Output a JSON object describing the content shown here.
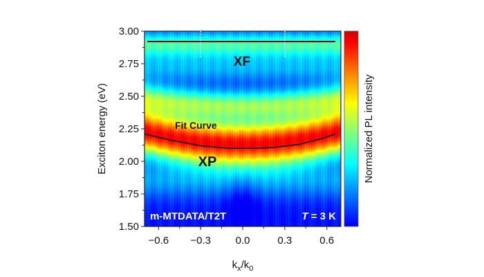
{
  "chart_data": {
    "type": "heatmap",
    "title": "",
    "xlabel": "k",
    "xlabel_sub1": "x",
    "xlabel_mid": "/k",
    "xlabel_sub2": "0",
    "ylabel": "Exciton energy (eV)",
    "xlim": [
      -0.7,
      0.7
    ],
    "ylim": [
      1.5,
      3.0
    ],
    "xticks": [
      -0.6,
      -0.3,
      0.0,
      0.3,
      0.6
    ],
    "xtick_labels": [
      "-0.6",
      "-0.3",
      "0.0",
      "0.3",
      "0.6"
    ],
    "yticks": [
      1.5,
      1.75,
      2.0,
      2.25,
      2.5,
      2.75,
      3.0
    ],
    "ytick_labels": [
      "1.50",
      "1.75",
      "2.00",
      "2.25",
      "2.50",
      "2.75",
      "3.00"
    ],
    "colorbar_label": "Normalized PL intensity",
    "colormap": "jet",
    "fit_curve": {
      "label": "Fit Curve",
      "x": [
        -0.7,
        -0.5,
        -0.3,
        -0.1,
        0.05,
        0.2,
        0.4,
        0.55,
        0.66
      ],
      "y": [
        2.21,
        2.16,
        2.12,
        2.1,
        2.1,
        2.105,
        2.13,
        2.17,
        2.21
      ]
    },
    "xf_line": {
      "x": [
        -0.68,
        0.66
      ],
      "y": 2.92
    },
    "dotted_lines": [
      {
        "x": -0.3,
        "y": [
          2.8,
          3.0
        ]
      },
      {
        "x": 0.3,
        "y": [
          2.8,
          3.0
        ]
      }
    ],
    "annotations": {
      "xf": "XF",
      "xp": "XP",
      "sample": "m-MTDATA/T2T",
      "temp_italic": "T",
      "temp_rest": " = 3 K"
    }
  }
}
